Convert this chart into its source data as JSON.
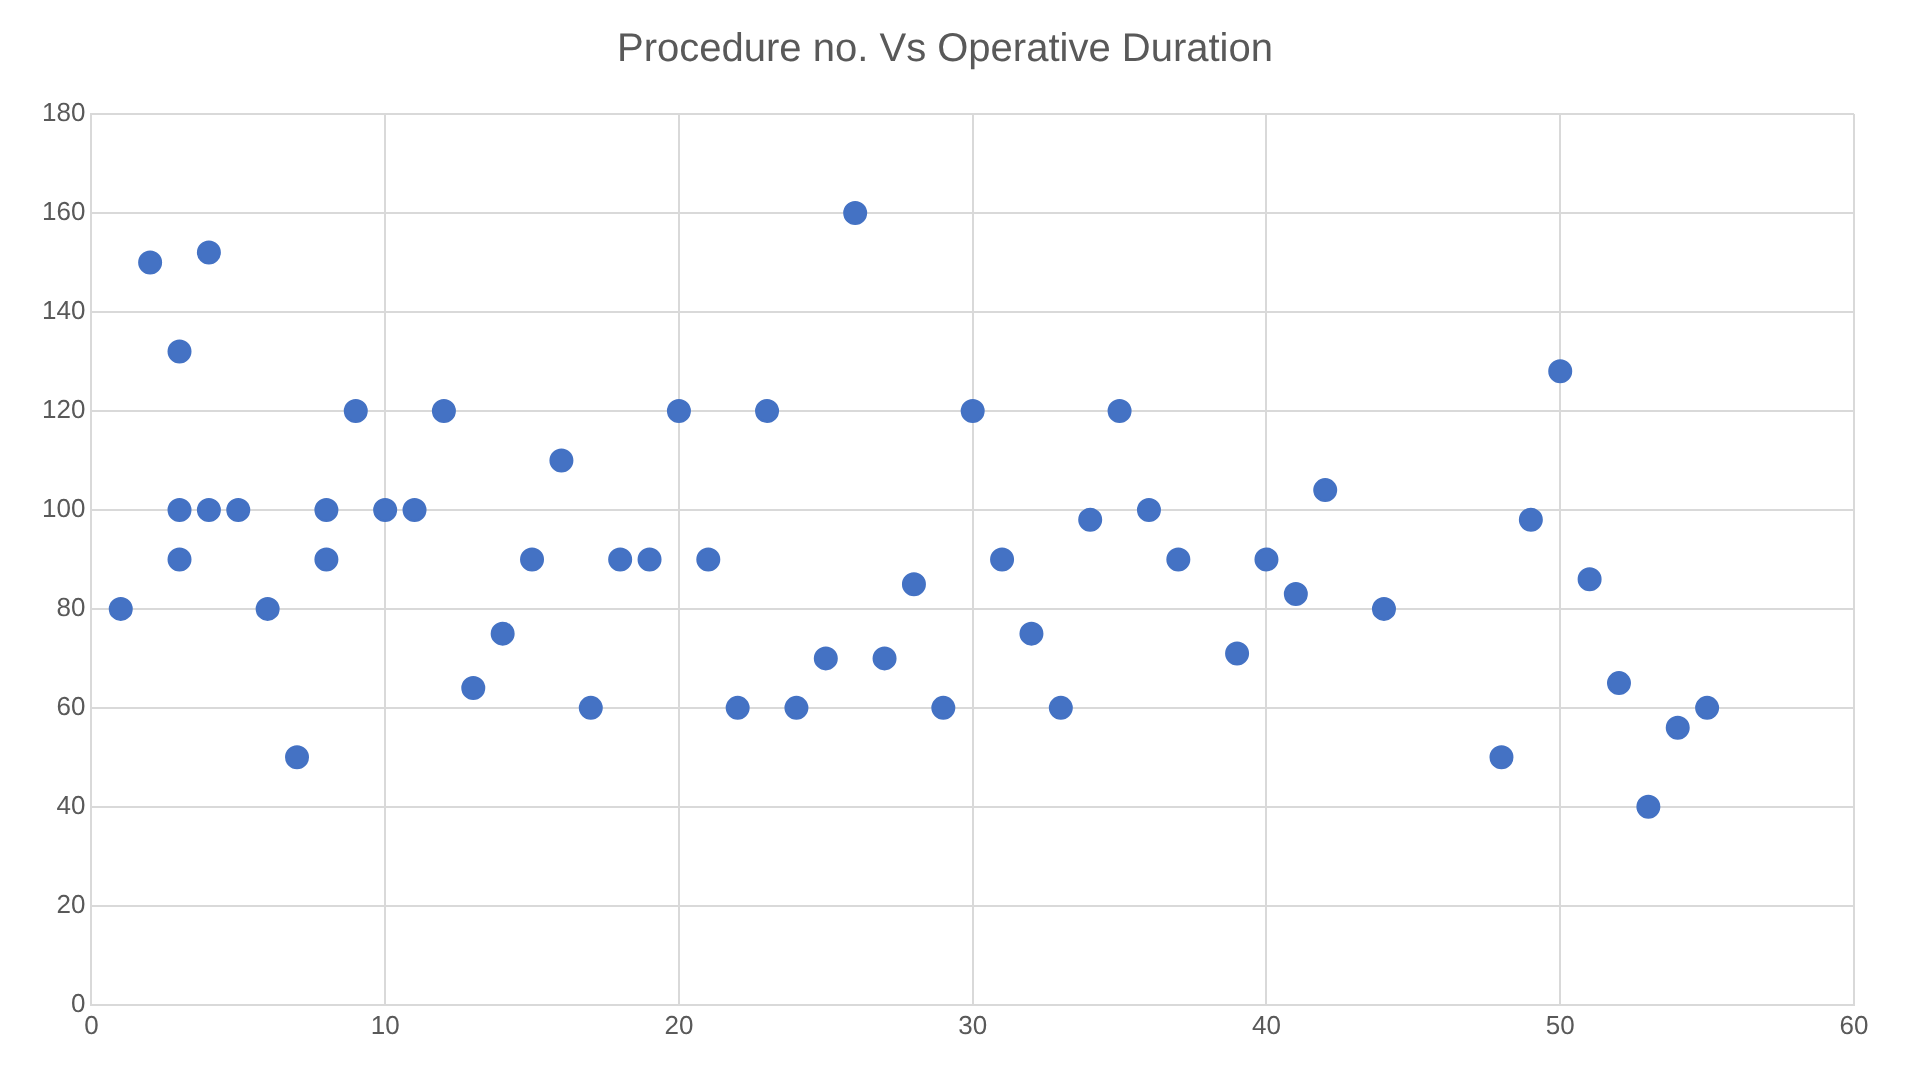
{
  "chart_data": {
    "type": "scatter",
    "title": "Procedure no. Vs Operative Duration",
    "x": [
      1,
      2,
      3,
      3,
      3,
      4,
      4,
      5,
      6,
      7,
      8,
      8,
      9,
      10,
      11,
      12,
      13,
      14,
      15,
      16,
      17,
      18,
      19,
      20,
      21,
      22,
      23,
      24,
      25,
      26,
      27,
      28,
      29,
      30,
      31,
      32,
      33,
      34,
      35,
      36,
      37,
      39,
      40,
      41,
      42,
      44,
      48,
      49,
      50,
      51,
      52,
      53,
      54,
      55
    ],
    "series": [
      {
        "color": "#4472c4",
        "values": [
          80,
          150,
          132,
          100,
          90,
          152,
          100,
          100,
          80,
          50,
          100,
          90,
          120,
          100,
          100,
          120,
          64,
          75,
          90,
          110,
          60,
          90,
          90,
          120,
          90,
          60,
          120,
          60,
          70,
          160,
          70,
          85,
          60,
          120,
          90,
          75,
          60,
          98,
          120,
          100,
          90,
          71,
          90,
          83,
          104,
          80,
          50,
          98,
          128,
          86,
          65,
          40,
          56,
          60
        ]
      }
    ],
    "xlim": [
      0,
      60
    ],
    "xticks": [
      0,
      10,
      20,
      30,
      40,
      50,
      60
    ],
    "ylim": [
      0,
      180
    ],
    "yticks": [
      0,
      20,
      40,
      60,
      80,
      100,
      120,
      140,
      160,
      180
    ],
    "grid": true,
    "marker": "circle",
    "legend": false
  }
}
